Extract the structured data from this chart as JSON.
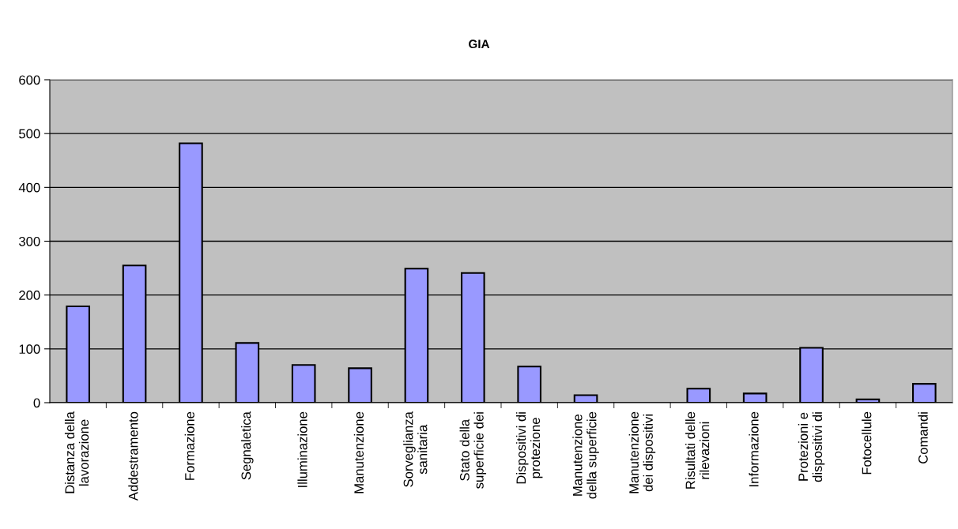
{
  "chart_data": {
    "type": "bar",
    "title": "GIA",
    "categories": [
      "Distanza della\nlavorazione",
      "Addestramento",
      "Formazione",
      "Segnaletica",
      "Illuminazione",
      "Manutenzione",
      "Sorveglianza\nsanitaria",
      "Stato della\nsuperficie dei",
      "Dispositivi di\nprotezione",
      "Manutenzione\ndella superficie",
      "Manutenzione\ndei dispositivi",
      "Risultati delle\nrilevazioni",
      "Informazione",
      "Protezioni e\ndispositivi di",
      "Fotocellule",
      "Comandi"
    ],
    "values": [
      179,
      255,
      482,
      111,
      70,
      64,
      249,
      241,
      67,
      14,
      0,
      26,
      17,
      102,
      6,
      35
    ],
    "color": "#9999ff",
    "ylim": [
      0,
      600
    ],
    "yticks": [
      0,
      100,
      200,
      300,
      400,
      500,
      600
    ],
    "grid": "y"
  }
}
